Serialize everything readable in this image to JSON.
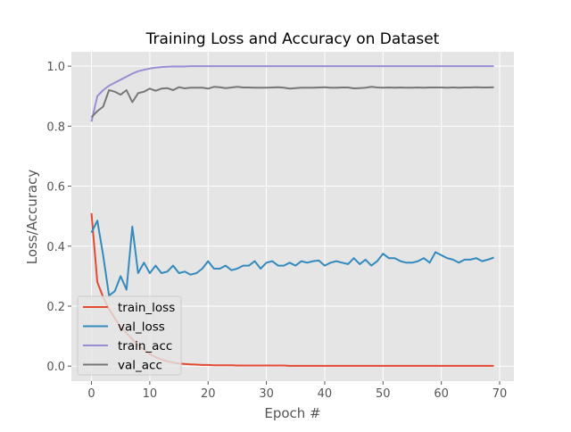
{
  "chart_data": {
    "type": "line",
    "title": "Training Loss and Accuracy on Dataset",
    "xlabel": "Epoch #",
    "ylabel": "Loss/Accuracy",
    "xlim": [
      -3.45,
      72.45
    ],
    "ylim": [
      -0.05,
      1.048
    ],
    "xticks": [
      0,
      10,
      20,
      30,
      40,
      50,
      60,
      70
    ],
    "yticks": [
      0.0,
      0.2,
      0.4,
      0.6,
      0.8,
      1.0
    ],
    "xtick_labels": [
      "0",
      "10",
      "20",
      "30",
      "40",
      "50",
      "60",
      "70"
    ],
    "ytick_labels": [
      "0.0",
      "0.2",
      "0.4",
      "0.6",
      "0.8",
      "1.0"
    ],
    "grid": true,
    "style": "ggplot",
    "background": "#E5E5E5",
    "legend_position": "lower-left",
    "series": [
      {
        "name": "train_loss",
        "color": "#E24A33",
        "values": [
          0.51,
          0.28,
          0.23,
          0.19,
          0.16,
          0.13,
          0.11,
          0.09,
          0.07,
          0.055,
          0.04,
          0.03,
          0.022,
          0.016,
          0.012,
          0.009,
          0.007,
          0.006,
          0.005,
          0.004,
          0.004,
          0.003,
          0.003,
          0.003,
          0.003,
          0.002,
          0.002,
          0.002,
          0.002,
          0.002,
          0.002,
          0.002,
          0.002,
          0.002,
          0.001,
          0.001,
          0.001,
          0.001,
          0.001,
          0.001,
          0.001,
          0.001,
          0.001,
          0.001,
          0.001,
          0.001,
          0.001,
          0.001,
          0.001,
          0.001,
          0.001,
          0.001,
          0.001,
          0.001,
          0.001,
          0.001,
          0.001,
          0.001,
          0.001,
          0.001,
          0.001,
          0.001,
          0.001,
          0.001,
          0.001,
          0.001,
          0.001,
          0.001,
          0.001,
          0.001
        ]
      },
      {
        "name": "val_loss",
        "color": "#348ABD",
        "values": [
          0.445,
          0.485,
          0.37,
          0.235,
          0.25,
          0.3,
          0.255,
          0.465,
          0.31,
          0.345,
          0.31,
          0.335,
          0.31,
          0.315,
          0.335,
          0.31,
          0.315,
          0.305,
          0.31,
          0.325,
          0.35,
          0.325,
          0.325,
          0.335,
          0.32,
          0.325,
          0.335,
          0.335,
          0.35,
          0.325,
          0.345,
          0.35,
          0.335,
          0.335,
          0.345,
          0.335,
          0.35,
          0.345,
          0.35,
          0.352,
          0.335,
          0.345,
          0.35,
          0.345,
          0.34,
          0.36,
          0.34,
          0.355,
          0.335,
          0.35,
          0.375,
          0.36,
          0.36,
          0.35,
          0.345,
          0.345,
          0.35,
          0.36,
          0.345,
          0.38,
          0.37,
          0.36,
          0.355,
          0.345,
          0.355,
          0.355,
          0.36,
          0.35,
          0.355,
          0.362
        ]
      },
      {
        "name": "train_acc",
        "color": "#988ED5",
        "values": [
          0.815,
          0.9,
          0.92,
          0.935,
          0.945,
          0.955,
          0.965,
          0.975,
          0.983,
          0.988,
          0.992,
          0.995,
          0.997,
          0.998,
          0.999,
          0.999,
          0.999,
          1.0,
          1.0,
          1.0,
          1.0,
          1.0,
          1.0,
          1.0,
          1.0,
          1.0,
          1.0,
          1.0,
          1.0,
          1.0,
          1.0,
          1.0,
          1.0,
          1.0,
          1.0,
          1.0,
          1.0,
          1.0,
          1.0,
          1.0,
          1.0,
          1.0,
          1.0,
          1.0,
          1.0,
          1.0,
          1.0,
          1.0,
          1.0,
          1.0,
          1.0,
          1.0,
          1.0,
          1.0,
          1.0,
          1.0,
          1.0,
          1.0,
          1.0,
          1.0,
          1.0,
          1.0,
          1.0,
          1.0,
          1.0,
          1.0,
          1.0,
          1.0,
          1.0,
          1.0
        ]
      },
      {
        "name": "val_acc",
        "color": "#777777",
        "values": [
          0.83,
          0.85,
          0.865,
          0.92,
          0.915,
          0.905,
          0.92,
          0.88,
          0.91,
          0.915,
          0.925,
          0.918,
          0.925,
          0.927,
          0.92,
          0.93,
          0.926,
          0.928,
          0.928,
          0.928,
          0.925,
          0.931,
          0.93,
          0.927,
          0.929,
          0.931,
          0.929,
          0.929,
          0.928,
          0.928,
          0.928,
          0.929,
          0.93,
          0.928,
          0.925,
          0.927,
          0.928,
          0.928,
          0.928,
          0.929,
          0.93,
          0.928,
          0.928,
          0.929,
          0.929,
          0.926,
          0.927,
          0.928,
          0.931,
          0.929,
          0.928,
          0.929,
          0.928,
          0.929,
          0.928,
          0.928,
          0.929,
          0.928,
          0.929,
          0.929,
          0.929,
          0.928,
          0.929,
          0.928,
          0.929,
          0.929,
          0.93,
          0.929,
          0.929,
          0.93
        ]
      }
    ]
  }
}
